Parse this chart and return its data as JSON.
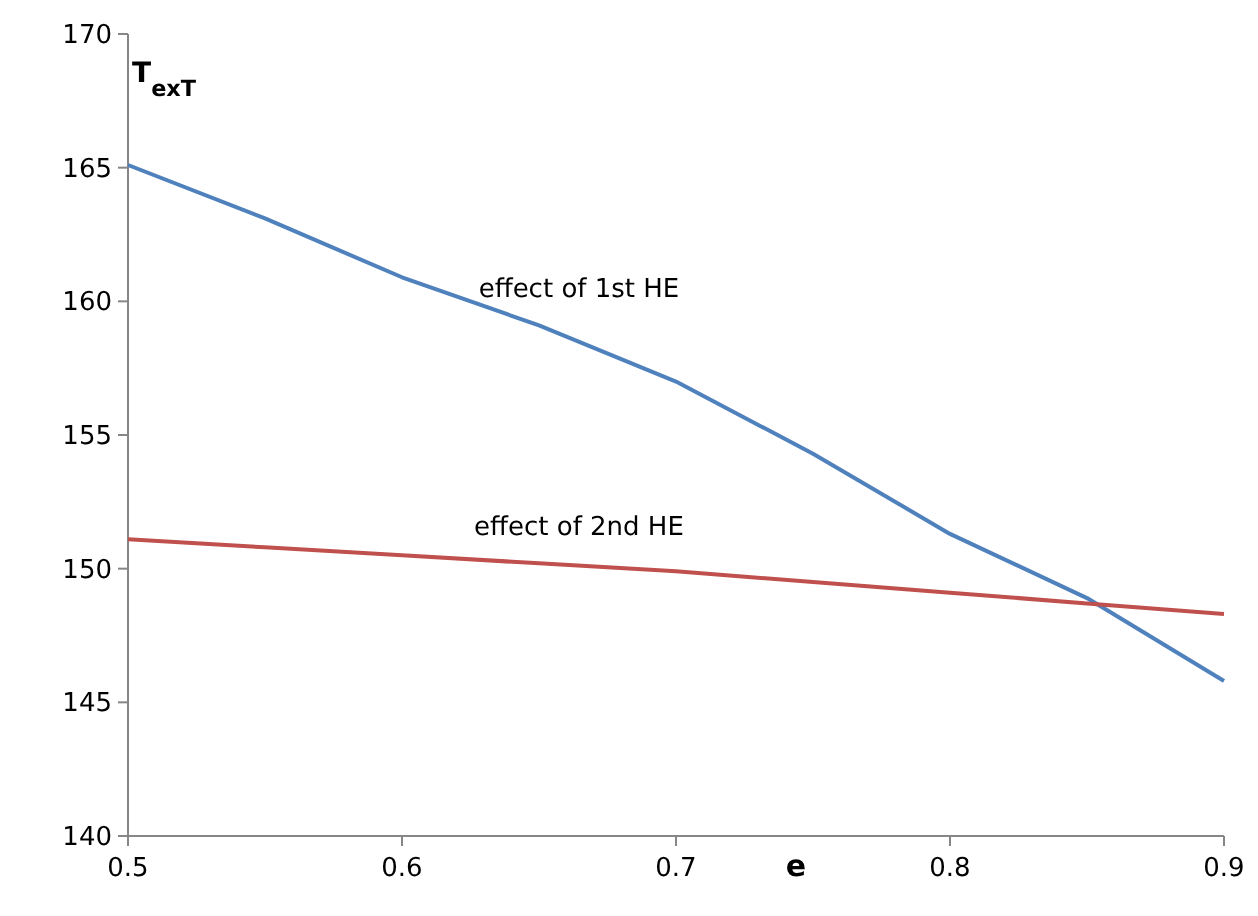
{
  "chart_data": {
    "type": "line",
    "ylabel": "T$_{exT}$",
    "xlabel": "e",
    "x": [
      0.5,
      0.55,
      0.6,
      0.65,
      0.7,
      0.75,
      0.8,
      0.85,
      0.9
    ],
    "series": [
      {
        "color": "#4f81bd",
        "values": [
          165.1,
          163.1,
          160.9,
          159.1,
          157.0,
          154.3,
          151.3,
          148.9,
          145.8
        ]
      },
      {
        "color": "#c0504d",
        "values": [
          151.1,
          150.8,
          150.5,
          150.2,
          149.9,
          149.5,
          149.1,
          148.7,
          148.3
        ]
      }
    ],
    "xlim": [
      0.5,
      0.9
    ],
    "xticks": [
      0.5,
      0.6,
      0.7,
      0.8,
      0.9
    ],
    "ylim": [
      140,
      170
    ],
    "yticks": [
      140,
      145,
      150,
      155,
      160,
      165,
      170
    ],
    "annotations": [
      "effect of 1st HE",
      "effect of 2nd HE"
    ],
    "marker": "none",
    "line_style": "solid",
    "grid": false
  }
}
